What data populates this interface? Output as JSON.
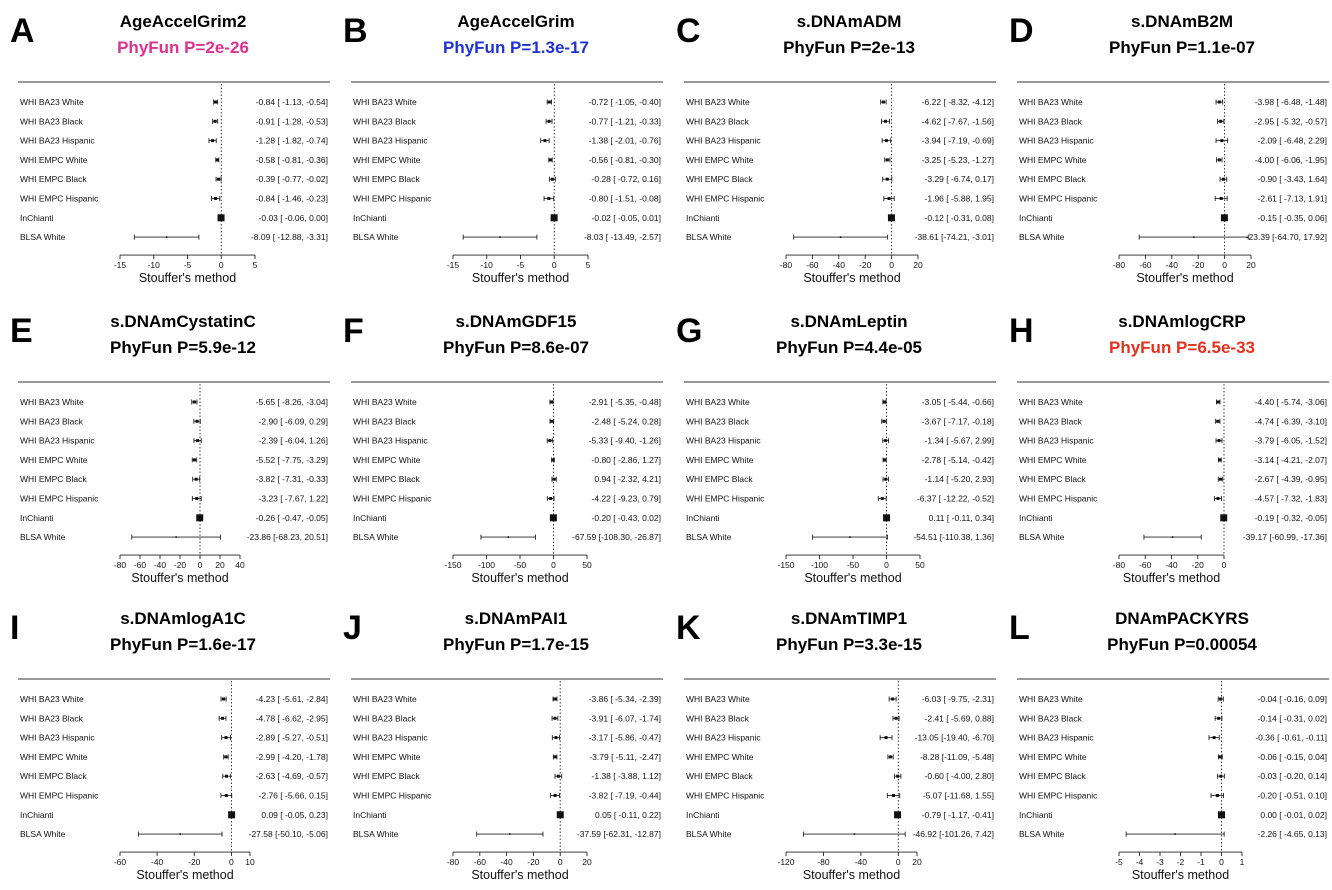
{
  "colors": {
    "default_pval": "#000000",
    "magenta": "#e0308f",
    "blue": "#1d33d6",
    "red": "#e8301c"
  },
  "chart_data": [
    {
      "type": "forest",
      "panel": "A",
      "title": "AgeAccelGrim2",
      "pval_text": "PhyFun P=2e-26",
      "pval_color": "#e0308f",
      "xlabel": "Stouffer's method",
      "xlim": [
        -15,
        5
      ],
      "xticks": [
        -15,
        -10,
        -5,
        0,
        5
      ],
      "studies": [
        "WHI BA23 White",
        "WHI BA23 Black",
        "WHI BA23 Hispanic",
        "WHI EMPC White",
        "WHI EMPC Black",
        "WHI EMPC Hispanic",
        "InChianti",
        "BLSA White"
      ],
      "estimates": [
        -0.84,
        -0.91,
        -1.28,
        -0.58,
        -0.39,
        -0.84,
        -0.03,
        -8.09
      ],
      "lower": [
        -1.13,
        -1.28,
        -1.82,
        -0.81,
        -0.77,
        -1.46,
        -0.06,
        -12.88
      ],
      "upper": [
        -0.54,
        -0.53,
        -0.74,
        -0.36,
        -0.02,
        -0.23,
        0.0,
        -3.31
      ],
      "ci_text": [
        "-0.84 [ -1.13, -0.54]",
        "-0.91 [ -1.28, -0.53]",
        "-1.28 [ -1.82, -0.74]",
        "-0.58 [ -0.81, -0.36]",
        "-0.39 [ -0.77, -0.02]",
        "-0.84 [ -1.46, -0.23]",
        "-0.03 [ -0.06, 0.00]",
        "-8.09 [ -12.88, -3.31]"
      ],
      "weights": [
        1,
        1,
        1,
        1,
        1,
        1,
        3,
        0
      ]
    },
    {
      "type": "forest",
      "panel": "B",
      "title": "AgeAccelGrim",
      "pval_text": "PhyFun P=1.3e-17",
      "pval_color": "#1d33d6",
      "xlabel": "Stouffer's method",
      "xlim": [
        -15,
        5
      ],
      "xticks": [
        -15,
        -10,
        -5,
        0,
        5
      ],
      "studies": [
        "WHI BA23 White",
        "WHI BA23 Black",
        "WHI BA23 Hispanic",
        "WHI EMPC White",
        "WHI EMPC Black",
        "WHI EMPC Hispanic",
        "InChianti",
        "BLSA White"
      ],
      "estimates": [
        -0.72,
        -0.77,
        -1.38,
        -0.56,
        -0.28,
        -0.8,
        -0.02,
        -8.03
      ],
      "lower": [
        -1.05,
        -1.21,
        -2.01,
        -0.81,
        -0.72,
        -1.51,
        -0.05,
        -13.49
      ],
      "upper": [
        -0.4,
        -0.33,
        -0.76,
        -0.3,
        0.16,
        -0.08,
        0.01,
        -2.57
      ],
      "ci_text": [
        "-0.72 [ -1.05, -0.40]",
        "-0.77 [ -1.21, -0.33]",
        "-1.38 [ -2.01, -0.76]",
        "-0.56 [ -0.81, -0.30]",
        "-0.28 [ -0.72, 0.16]",
        "-0.80 [ -1.51, -0.08]",
        "-0.02 [ -0.05, 0.01]",
        "-8.03 [ -13.49, -2.57]"
      ],
      "weights": [
        1,
        1,
        1,
        1,
        1,
        1,
        3,
        0
      ]
    },
    {
      "type": "forest",
      "panel": "C",
      "title": "s.DNAmADM",
      "pval_text": "PhyFun P=2e-13",
      "pval_color": "#000000",
      "xlabel": "Stouffer's method",
      "xlim": [
        -80,
        20
      ],
      "xticks": [
        -80,
        -60,
        -40,
        -20,
        0,
        20
      ],
      "studies": [
        "WHI BA23 White",
        "WHI BA23 Black",
        "WHI BA23 Hispanic",
        "WHI EMPC White",
        "WHI EMPC Black",
        "WHI EMPC Hispanic",
        "InChianti",
        "BLSA White"
      ],
      "estimates": [
        -6.22,
        -4.62,
        -3.94,
        -3.25,
        -3.29,
        -1.96,
        -0.12,
        -38.61
      ],
      "lower": [
        -8.32,
        -7.67,
        -7.19,
        -5.23,
        -6.74,
        -5.88,
        -0.31,
        -74.21
      ],
      "upper": [
        -4.12,
        -1.56,
        -0.69,
        -1.27,
        0.17,
        1.95,
        0.08,
        -3.01
      ],
      "ci_text": [
        "-6.22 [ -8.32, -4.12]",
        "-4.62 [ -7.67, -1.56]",
        "-3.94 [ -7.19, -0.69]",
        "-3.25 [ -5.23, -1.27]",
        "-3.29 [ -6.74, 0.17]",
        "-1.96 [ -5.88, 1.95]",
        "-0.12 [ -0.31, 0.08]",
        "-38.61 [-74.21, -3.01]"
      ],
      "weights": [
        1,
        1,
        1,
        1,
        1,
        1,
        3,
        0
      ]
    },
    {
      "type": "forest",
      "panel": "D",
      "title": "s.DNAmB2M",
      "pval_text": "PhyFun P=1.1e-07",
      "pval_color": "#000000",
      "xlabel": "Stouffer's method",
      "xlim": [
        -80,
        20
      ],
      "xticks": [
        -80,
        -60,
        -40,
        -20,
        0,
        20
      ],
      "studies": [
        "WHI BA23 White",
        "WHI BA23 Black",
        "WHI BA23 Hispanic",
        "WHI EMPC White",
        "WHI EMPC Black",
        "WHI EMPC Hispanic",
        "InChianti",
        "BLSA White"
      ],
      "estimates": [
        -3.98,
        -2.95,
        -2.09,
        -4.0,
        -0.9,
        -2.61,
        -0.15,
        -23.39
      ],
      "lower": [
        -6.48,
        -5.32,
        -6.48,
        -6.06,
        -3.43,
        -7.13,
        -0.35,
        -64.7
      ],
      "upper": [
        -1.48,
        -0.57,
        2.29,
        -1.95,
        1.64,
        1.91,
        0.06,
        17.92
      ],
      "ci_text": [
        "-3.98 [ -6.48, -1.48]",
        "-2.95 [ -5.32, -0.57]",
        "-2.09 [ -6.48, 2.29]",
        "-4.00 [ -6.06, -1.95]",
        "-0.90 [ -3.43, 1.64]",
        "-2.61 [ -7.13, 1.91]",
        "-0.15 [ -0.35, 0.06]",
        "-23.39 [-64.70, 17.92]"
      ],
      "weights": [
        1,
        1,
        1,
        1,
        1,
        1,
        3,
        0
      ]
    },
    {
      "type": "forest",
      "panel": "E",
      "title": "s.DNAmCystatinC",
      "pval_text": "PhyFun P=5.9e-12",
      "pval_color": "#000000",
      "xlabel": "Stouffer's method",
      "xlim": [
        -80,
        40
      ],
      "xticks": [
        -80,
        -60,
        -40,
        -20,
        0,
        20,
        40
      ],
      "studies": [
        "WHI BA23 White",
        "WHI BA23 Black",
        "WHI BA23 Hispanic",
        "WHI EMPC White",
        "WHI EMPC Black",
        "WHI EMPC Hispanic",
        "InChianti",
        "BLSA White"
      ],
      "estimates": [
        -5.65,
        -2.9,
        -2.39,
        -5.52,
        -3.82,
        -3.23,
        -0.26,
        -23.86
      ],
      "lower": [
        -8.26,
        -6.09,
        -6.04,
        -7.75,
        -7.31,
        -7.67,
        -0.47,
        -68.23
      ],
      "upper": [
        -3.04,
        0.29,
        1.26,
        -3.29,
        -0.33,
        1.22,
        -0.05,
        20.51
      ],
      "ci_text": [
        "-5.65 [ -8.26, -3.04]",
        "-2.90 [ -6.09, 0.29]",
        "-2.39 [ -6.04, 1.26]",
        "-5.52 [ -7.75, -3.29]",
        "-3.82 [ -7.31, -0.33]",
        "-3.23 [ -7.67, 1.22]",
        "-0.26 [ -0.47, -0.05]",
        "-23.86 [-68.23, 20.51]"
      ],
      "weights": [
        1,
        1,
        1,
        1,
        1,
        1,
        3,
        0
      ]
    },
    {
      "type": "forest",
      "panel": "F",
      "title": "s.DNAmGDF15",
      "pval_text": "PhyFun P=8.6e-07",
      "pval_color": "#000000",
      "xlabel": "Stouffer's method",
      "xlim": [
        -150,
        50
      ],
      "xticks": [
        -150,
        -100,
        -50,
        0,
        50
      ],
      "studies": [
        "WHI BA23 White",
        "WHI BA23 Black",
        "WHI BA23 Hispanic",
        "WHI EMPC White",
        "WHI EMPC Black",
        "WHI EMPC Hispanic",
        "InChianti",
        "BLSA White"
      ],
      "estimates": [
        -2.91,
        -2.48,
        -5.33,
        -0.8,
        0.94,
        -4.22,
        -0.2,
        -67.59
      ],
      "lower": [
        -5.35,
        -5.24,
        -9.4,
        -2.86,
        -2.32,
        -9.23,
        -0.43,
        -108.3
      ],
      "upper": [
        -0.48,
        0.28,
        -1.26,
        1.27,
        4.21,
        0.79,
        0.02,
        -26.87
      ],
      "ci_text": [
        "-2.91 [ -5.35, -0.48]",
        "-2.48 [ -5.24, 0.28]",
        "-5.33 [ -9.40, -1.26]",
        "-0.80 [ -2.86, 1.27]",
        "0.94 [ -2.32, 4.21]",
        "-4.22 [ -9.23, 0.79]",
        "-0.20 [ -0.43, 0.02]",
        "-67.59 [-108.30, -26.87]"
      ],
      "weights": [
        1,
        1,
        1,
        1,
        1,
        1,
        3,
        0
      ]
    },
    {
      "type": "forest",
      "panel": "G",
      "title": "s.DNAmLeptin",
      "pval_text": "PhyFun P=4.4e-05",
      "pval_color": "#000000",
      "xlabel": "Stouffer's method",
      "xlim": [
        -150,
        50
      ],
      "xticks": [
        -150,
        -100,
        -50,
        0,
        50
      ],
      "studies": [
        "WHI BA23 White",
        "WHI BA23 Black",
        "WHI BA23 Hispanic",
        "WHI EMPC White",
        "WHI EMPC Black",
        "WHI EMPC Hispanic",
        "InChianti",
        "BLSA White"
      ],
      "estimates": [
        -3.05,
        -3.67,
        -1.34,
        -2.78,
        -1.14,
        -6.37,
        0.11,
        -54.51
      ],
      "lower": [
        -5.44,
        -7.17,
        -5.67,
        -5.14,
        -5.2,
        -12.22,
        -0.11,
        -110.38
      ],
      "upper": [
        -0.66,
        -0.18,
        2.99,
        -0.42,
        2.93,
        -0.52,
        0.34,
        1.36
      ],
      "ci_text": [
        "-3.05 [ -5.44, -0.66]",
        "-3.67 [ -7.17, -0.18]",
        "-1.34 [ -5.67, 2.99]",
        "-2.78 [ -5.14, -0.42]",
        "-1.14 [ -5.20, 2.93]",
        "-6.37 [ -12.22, -0.52]",
        "0.11 [ -0.11, 0.34]",
        "-54.51 [-110.38, 1.36]"
      ],
      "weights": [
        1,
        1,
        1,
        1,
        1,
        1,
        3,
        0
      ]
    },
    {
      "type": "forest",
      "panel": "H",
      "title": "s.DNAmlogCRP",
      "pval_text": "PhyFun P=6.5e-33",
      "pval_color": "#e8301c",
      "xlabel": "Stouffer's method",
      "xlim": [
        -80,
        0
      ],
      "xticks": [
        -80,
        -60,
        -40,
        -20,
        0
      ],
      "studies": [
        "WHI BA23 White",
        "WHI BA23 Black",
        "WHI BA23 Hispanic",
        "WHI EMPC White",
        "WHI EMPC Black",
        "WHI EMPC Hispanic",
        "InChianti",
        "BLSA White"
      ],
      "estimates": [
        -4.4,
        -4.74,
        -3.79,
        -3.14,
        -2.67,
        -4.57,
        -0.19,
        -39.17
      ],
      "lower": [
        -5.74,
        -6.39,
        -6.05,
        -4.21,
        -4.39,
        -7.32,
        -0.32,
        -60.99
      ],
      "upper": [
        -3.06,
        -3.1,
        -1.52,
        -2.07,
        -0.95,
        -1.83,
        -0.05,
        -17.36
      ],
      "ci_text": [
        "-4.40 [ -5.74, -3.06]",
        "-4.74 [ -6.39, -3.10]",
        "-3.79 [ -6.05, -1.52]",
        "-3.14 [ -4.21, -2.07]",
        "-2.67 [ -4.39, -0.95]",
        "-4.57 [ -7.32, -1.83]",
        "-0.19 [ -0.32, -0.05]",
        "-39.17 [-60.99, -17.36]"
      ],
      "weights": [
        1,
        1,
        1,
        1,
        1,
        1,
        3,
        0
      ]
    },
    {
      "type": "forest",
      "panel": "I",
      "title": "s.DNAmlogA1C",
      "pval_text": "PhyFun P=1.6e-17",
      "pval_color": "#000000",
      "xlabel": "Stouffer's method",
      "xlim": [
        -60,
        10
      ],
      "xticks": [
        -60,
        -40,
        -20,
        0,
        10
      ],
      "studies": [
        "WHI BA23 White",
        "WHI BA23 Black",
        "WHI BA23 Hispanic",
        "WHI EMPC White",
        "WHI EMPC Black",
        "WHI EMPC Hispanic",
        "InChianti",
        "BLSA White"
      ],
      "estimates": [
        -4.23,
        -4.78,
        -2.89,
        -2.99,
        -2.63,
        -2.76,
        0.09,
        -27.58
      ],
      "lower": [
        -5.61,
        -6.62,
        -5.27,
        -4.2,
        -4.69,
        -5.66,
        -0.05,
        -50.1
      ],
      "upper": [
        -2.84,
        -2.95,
        -0.51,
        -1.78,
        -0.57,
        0.15,
        0.23,
        -5.06
      ],
      "ci_text": [
        "-4.23 [ -5.61, -2.84]",
        "-4.78 [ -6.62, -2.95]",
        "-2.89 [ -5.27, -0.51]",
        "-2.99 [ -4.20, -1.78]",
        "-2.63 [ -4.69, -0.57]",
        "-2.76 [ -5.66, 0.15]",
        "0.09 [ -0.05, 0.23]",
        "-27.58 [-50.10, -5.06]"
      ],
      "weights": [
        1,
        1,
        1,
        1,
        1,
        1,
        3,
        0
      ]
    },
    {
      "type": "forest",
      "panel": "J",
      "title": "s.DNAmPAI1",
      "pval_text": "PhyFun P=1.7e-15",
      "pval_color": "#000000",
      "xlabel": "Stouffer's method",
      "xlim": [
        -80,
        20
      ],
      "xticks": [
        -80,
        -60,
        -40,
        -20,
        0,
        20
      ],
      "studies": [
        "WHI BA23 White",
        "WHI BA23 Black",
        "WHI BA23 Hispanic",
        "WHI EMPC White",
        "WHI EMPC Black",
        "WHI EMPC Hispanic",
        "InChianti",
        "BLSA White"
      ],
      "estimates": [
        -3.86,
        -3.91,
        -3.17,
        -3.79,
        -1.38,
        -3.82,
        0.05,
        -37.59
      ],
      "lower": [
        -5.34,
        -6.07,
        -5.86,
        -5.11,
        -3.88,
        -7.19,
        -0.11,
        -62.31
      ],
      "upper": [
        -2.39,
        -1.74,
        -0.47,
        -2.47,
        1.12,
        -0.44,
        0.22,
        -12.87
      ],
      "ci_text": [
        "-3.86 [ -5.34, -2.39]",
        "-3.91 [ -6.07, -1.74]",
        "-3.17 [ -5.86, -0.47]",
        "-3.79 [ -5.11, -2.47]",
        "-1.38 [ -3.88, 1.12]",
        "-3.82 [ -7.19, -0.44]",
        "0.05 [ -0.11, 0.22]",
        "-37.59 [-62.31, -12.87]"
      ],
      "weights": [
        1,
        1,
        1,
        1,
        1,
        1,
        3,
        0
      ]
    },
    {
      "type": "forest",
      "panel": "K",
      "title": "s.DNAmTIMP1",
      "pval_text": "PhyFun P=3.3e-15",
      "pval_color": "#000000",
      "xlabel": "Stouffer's method",
      "xlim": [
        -120,
        20
      ],
      "xticks": [
        -120,
        -80,
        -40,
        0,
        20
      ],
      "studies": [
        "WHI BA23 White",
        "WHI BA23 Black",
        "WHI BA23 Hispanic",
        "WHI EMPC White",
        "WHI EMPC Black",
        "WHI EMPC Hispanic",
        "InChianti",
        "BLSA White"
      ],
      "estimates": [
        -6.03,
        -2.41,
        -13.05,
        -8.28,
        -0.6,
        -5.07,
        -0.79,
        -46.92
      ],
      "lower": [
        -9.75,
        -5.69,
        -19.4,
        -11.09,
        -4.0,
        -11.68,
        -1.17,
        -101.26
      ],
      "upper": [
        -2.31,
        0.88,
        -6.7,
        -5.48,
        2.8,
        1.55,
        -0.41,
        7.42
      ],
      "ci_text": [
        "-6.03 [ -9.75, -2.31]",
        "-2.41 [ -5.69, 0.88]",
        "-13.05 [-19.40, -6.70]",
        "-8.28 [-11.09, -5.48]",
        "-0.60 [ -4.00, 2.80]",
        "-5.07 [-11.68, 1.55]",
        "-0.79 [ -1.17, -0.41]",
        "-46.92 [-101.26, 7.42]"
      ],
      "weights": [
        1,
        1,
        1,
        1,
        1,
        1,
        3,
        0
      ]
    },
    {
      "type": "forest",
      "panel": "L",
      "title": "DNAmPACKYRS",
      "pval_text": "PhyFun P=0.00054",
      "pval_color": "#000000",
      "xlabel": "Stouffer's method",
      "xlim": [
        -5,
        1
      ],
      "xticks": [
        -5,
        -4,
        -3,
        -2,
        -1,
        0,
        1
      ],
      "studies": [
        "WHI BA23 White",
        "WHI BA23 Black",
        "WHI BA23 Hispanic",
        "WHI EMPC White",
        "WHI EMPC Black",
        "WHI EMPC Hispanic",
        "InChianti",
        "BLSA White"
      ],
      "estimates": [
        -0.04,
        -0.14,
        -0.36,
        -0.06,
        -0.03,
        -0.2,
        0.0,
        -2.26
      ],
      "lower": [
        -0.16,
        -0.31,
        -0.61,
        -0.15,
        -0.2,
        -0.51,
        -0.01,
        -4.65
      ],
      "upper": [
        0.09,
        0.02,
        -0.11,
        0.04,
        0.14,
        0.1,
        0.02,
        0.13
      ],
      "ci_text": [
        "-0.04 [ -0.16, 0.09]",
        "-0.14 [ -0.31, 0.02]",
        "-0.36 [ -0.61, -0.11]",
        "-0.06 [ -0.15, 0.04]",
        "-0.03 [ -0.20, 0.14]",
        "-0.20 [ -0.51, 0.10]",
        "0.00 [ -0.01, 0.02]",
        "-2.26 [ -4.65, 0.13]"
      ],
      "weights": [
        1,
        1,
        1,
        1,
        1,
        1,
        3,
        0
      ]
    }
  ]
}
